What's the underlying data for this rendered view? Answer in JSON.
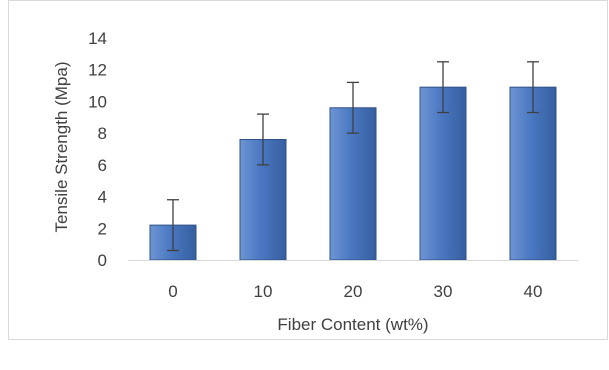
{
  "chart_data": {
    "type": "bar",
    "title": "",
    "xlabel": "Fiber Content (wt%)",
    "ylabel": "Tensile Strength (Mpa)",
    "categories": [
      "0",
      "10",
      "20",
      "30",
      "40"
    ],
    "values": [
      2.2,
      7.6,
      9.6,
      10.9,
      10.9
    ],
    "error": [
      1.6,
      1.6,
      1.6,
      1.6,
      1.6
    ],
    "ylim": [
      0,
      14
    ],
    "yticks": [
      "0",
      "2",
      "4",
      "6",
      "8",
      "10",
      "12",
      "14"
    ],
    "grid": false,
    "legend": "none",
    "colors": {
      "bar_fill_top": "#6e95d3",
      "bar_fill_mid": "#4a78c2",
      "bar_fill_bottom": "#365f9f",
      "bar_stroke": "#2f5288",
      "error_bar": "#404040",
      "axis_line": "#d9d9d9",
      "border": "#d9d9d9",
      "text": "#404040"
    }
  }
}
